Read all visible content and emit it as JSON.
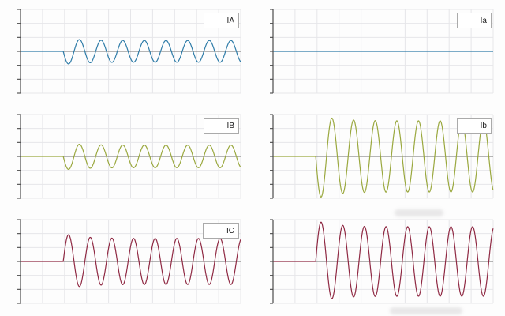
{
  "page": {
    "background": "#fdfdfd",
    "grid_color": "#e6e6e9",
    "zero_line_color": "#6e6e6e",
    "axis_color": "#4a4a4a",
    "legend_border_color": "#aaaaaa"
  },
  "chart_data": [
    {
      "type": "line",
      "position": "top-left",
      "legend": "IA",
      "color": "#2f7ca8",
      "x_range": [
        0,
        1
      ],
      "y_range": [
        -1,
        1
      ],
      "x_ticks_labeled": false,
      "y_ticks_labeled": false,
      "grid": {
        "x_divisions": 10,
        "y_divisions": 6,
        "shown": true
      },
      "legend_position": "top-right",
      "signal": {
        "baseline": 0,
        "fault_onset_x": 0.194,
        "cycles_after_onset": 8.2,
        "amplitude": 0.26,
        "first_cycle_amplitude": 0.3,
        "first_half_cycle": "negative"
      }
    },
    {
      "type": "line",
      "position": "top-right",
      "legend": "Ia",
      "color": "#2f7ca8",
      "x_range": [
        0,
        1
      ],
      "y_range": [
        -1,
        1
      ],
      "x_ticks_labeled": false,
      "y_ticks_labeled": false,
      "grid": {
        "x_divisions": 10,
        "y_divisions": 6,
        "shown": true
      },
      "legend_position": "top-right",
      "signal": {
        "baseline": 0,
        "fault_onset_x": null,
        "cycles_after_onset": 0,
        "amplitude": 0,
        "first_cycle_amplitude": 0,
        "first_half_cycle": null
      }
    },
    {
      "type": "line",
      "position": "middle-left",
      "legend": "IB",
      "color": "#9aa83e",
      "x_range": [
        0,
        1
      ],
      "y_range": [
        -1,
        1
      ],
      "x_ticks_labeled": false,
      "y_ticks_labeled": false,
      "grid": {
        "x_divisions": 10,
        "y_divisions": 6,
        "shown": true
      },
      "legend_position": "top-right",
      "signal": {
        "baseline": 0,
        "fault_onset_x": 0.194,
        "cycles_after_onset": 8.2,
        "amplitude": 0.27,
        "first_cycle_amplitude": 0.31,
        "first_half_cycle": "negative"
      }
    },
    {
      "type": "line",
      "position": "middle-right",
      "legend": "Ib",
      "color": "#9aa83e",
      "x_range": [
        0,
        1
      ],
      "y_range": [
        -1,
        1
      ],
      "x_ticks_labeled": false,
      "y_ticks_labeled": false,
      "grid": {
        "x_divisions": 10,
        "y_divisions": 6,
        "shown": true
      },
      "legend_position": "top-right",
      "signal": {
        "baseline": 0,
        "fault_onset_x": 0.194,
        "cycles_after_onset": 8.2,
        "amplitude": 0.85,
        "first_cycle_amplitude": 0.97,
        "first_half_cycle": "negative"
      }
    },
    {
      "type": "line",
      "position": "bottom-left",
      "legend": "IC",
      "color": "#8f2943",
      "x_range": [
        0,
        1
      ],
      "y_range": [
        -1,
        1
      ],
      "x_ticks_labeled": false,
      "y_ticks_labeled": false,
      "grid": {
        "x_divisions": 10,
        "y_divisions": 6,
        "shown": true
      },
      "legend_position": "top-right",
      "signal": {
        "baseline": 0,
        "fault_onset_x": 0.194,
        "cycles_after_onset": 8.2,
        "amplitude": 0.55,
        "first_cycle_amplitude": 0.64,
        "first_half_cycle": "positive"
      }
    },
    {
      "type": "line",
      "position": "bottom-right",
      "legend": null,
      "color": "#8f2943",
      "x_range": [
        0,
        1
      ],
      "y_range": [
        -1,
        1
      ],
      "x_ticks_labeled": false,
      "y_ticks_labeled": false,
      "grid": {
        "x_divisions": 10,
        "y_divisions": 6,
        "shown": true
      },
      "legend_position": null,
      "signal": {
        "baseline": 0,
        "fault_onset_x": 0.194,
        "cycles_after_onset": 8.2,
        "amplitude": 0.83,
        "first_cycle_amplitude": 0.94,
        "first_half_cycle": "positive"
      }
    }
  ]
}
